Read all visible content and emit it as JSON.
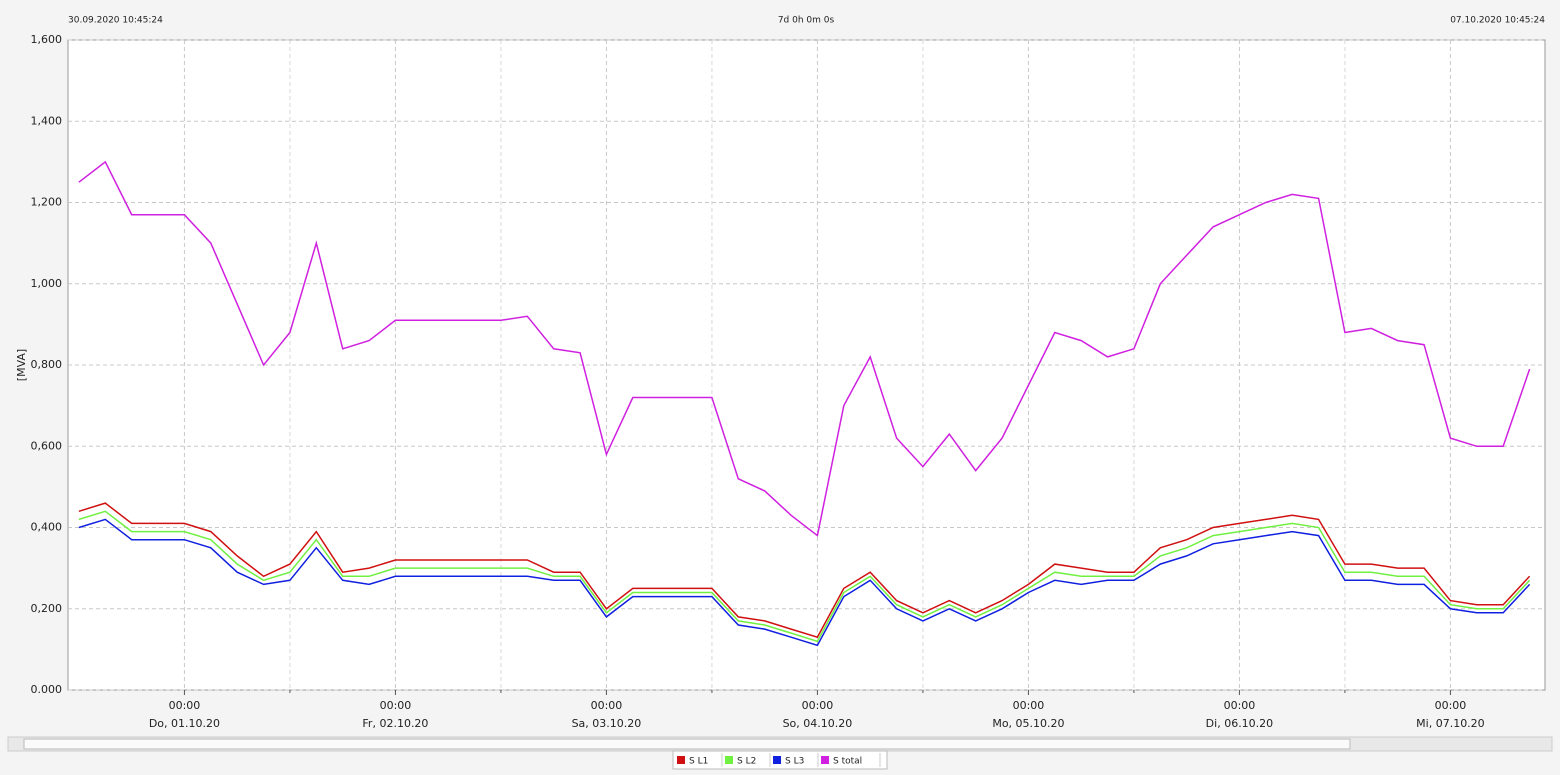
{
  "chart_data": {
    "type": "line",
    "header_left": "30.09.2020 10:45:24",
    "header_center": "7d 0h 0m 0s",
    "header_right": "07.10.2020 10:45:24",
    "y_label": "[MVA]",
    "xlim": [
      "2020-09-30T10:45:24",
      "2020-10-07T10:45:24"
    ],
    "xticks": [
      {
        "value": "2020-10-01T00:00",
        "label": "00:00",
        "day": "Do, 01.10.20"
      },
      {
        "value": "2020-10-02T00:00",
        "label": "00:00",
        "day": "Fr, 02.10.20"
      },
      {
        "value": "2020-10-03T00:00",
        "label": "00:00",
        "day": "Sa, 03.10.20"
      },
      {
        "value": "2020-10-04T00:00",
        "label": "00:00",
        "day": "So, 04.10.20"
      },
      {
        "value": "2020-10-05T00:00",
        "label": "00:00",
        "day": "Mo, 05.10.20"
      },
      {
        "value": "2020-10-06T00:00",
        "label": "00:00",
        "day": "Di, 06.10.20"
      },
      {
        "value": "2020-10-07T00:00",
        "label": "00:00",
        "day": "Mi, 07.10.20"
      }
    ],
    "xminorticks": [
      "2020-10-01T12:00",
      "2020-10-02T12:00",
      "2020-10-03T12:00",
      "2020-10-04T12:00",
      "2020-10-05T12:00",
      "2020-10-06T12:00"
    ],
    "ylim": [
      0,
      1.6
    ],
    "yticks": [
      {
        "value": 0,
        "label": "0.000"
      },
      {
        "value": 0.2,
        "label": "0,200"
      },
      {
        "value": 0.4,
        "label": "0,400"
      },
      {
        "value": 0.6,
        "label": "0,600"
      },
      {
        "value": 0.8,
        "label": "0,800"
      },
      {
        "value": 1.0,
        "label": "1,000"
      },
      {
        "value": 1.2,
        "label": "1,200"
      },
      {
        "value": 1.4,
        "label": "1,400"
      },
      {
        "value": 1.6,
        "label": "1,600"
      }
    ],
    "grid": true,
    "x": [
      "2020-09-30T12:00",
      "2020-09-30T15:00",
      "2020-09-30T18:00",
      "2020-09-30T21:00",
      "2020-10-01T00:00",
      "2020-10-01T03:00",
      "2020-10-01T06:00",
      "2020-10-01T09:00",
      "2020-10-01T12:00",
      "2020-10-01T15:00",
      "2020-10-01T18:00",
      "2020-10-01T21:00",
      "2020-10-02T00:00",
      "2020-10-02T03:00",
      "2020-10-02T06:00",
      "2020-10-02T09:00",
      "2020-10-02T12:00",
      "2020-10-02T15:00",
      "2020-10-02T18:00",
      "2020-10-02T21:00",
      "2020-10-03T00:00",
      "2020-10-03T03:00",
      "2020-10-03T06:00",
      "2020-10-03T09:00",
      "2020-10-03T12:00",
      "2020-10-03T15:00",
      "2020-10-03T18:00",
      "2020-10-03T21:00",
      "2020-10-04T00:00",
      "2020-10-04T03:00",
      "2020-10-04T06:00",
      "2020-10-04T09:00",
      "2020-10-04T12:00",
      "2020-10-04T15:00",
      "2020-10-04T18:00",
      "2020-10-04T21:00",
      "2020-10-05T00:00",
      "2020-10-05T03:00",
      "2020-10-05T06:00",
      "2020-10-05T09:00",
      "2020-10-05T12:00",
      "2020-10-05T15:00",
      "2020-10-05T18:00",
      "2020-10-05T21:00",
      "2020-10-06T00:00",
      "2020-10-06T03:00",
      "2020-10-06T06:00",
      "2020-10-06T09:00",
      "2020-10-06T12:00",
      "2020-10-06T15:00",
      "2020-10-06T18:00",
      "2020-10-06T21:00",
      "2020-10-07T00:00",
      "2020-10-07T03:00",
      "2020-10-07T06:00",
      "2020-10-07T09:00"
    ],
    "series": [
      {
        "name": "S L1",
        "color": "#d01010",
        "values": [
          0.44,
          0.46,
          0.41,
          0.41,
          0.41,
          0.39,
          0.33,
          0.28,
          0.31,
          0.39,
          0.29,
          0.3,
          0.32,
          0.32,
          0.32,
          0.32,
          0.32,
          0.32,
          0.29,
          0.29,
          0.2,
          0.25,
          0.25,
          0.25,
          0.25,
          0.18,
          0.17,
          0.15,
          0.13,
          0.25,
          0.29,
          0.22,
          0.19,
          0.22,
          0.19,
          0.22,
          0.26,
          0.31,
          0.3,
          0.29,
          0.29,
          0.35,
          0.37,
          0.4,
          0.41,
          0.42,
          0.43,
          0.42,
          0.31,
          0.31,
          0.3,
          0.3,
          0.22,
          0.21,
          0.21,
          0.28
        ]
      },
      {
        "name": "S L2",
        "color": "#70f040",
        "values": [
          0.42,
          0.44,
          0.39,
          0.39,
          0.39,
          0.37,
          0.31,
          0.27,
          0.29,
          0.37,
          0.28,
          0.28,
          0.3,
          0.3,
          0.3,
          0.3,
          0.3,
          0.3,
          0.28,
          0.28,
          0.19,
          0.24,
          0.24,
          0.24,
          0.24,
          0.17,
          0.16,
          0.14,
          0.12,
          0.24,
          0.28,
          0.21,
          0.18,
          0.21,
          0.18,
          0.21,
          0.25,
          0.29,
          0.28,
          0.28,
          0.28,
          0.33,
          0.35,
          0.38,
          0.39,
          0.4,
          0.41,
          0.4,
          0.29,
          0.29,
          0.28,
          0.28,
          0.21,
          0.2,
          0.2,
          0.27
        ]
      },
      {
        "name": "S L3",
        "color": "#1020e0",
        "values": [
          0.4,
          0.42,
          0.37,
          0.37,
          0.37,
          0.35,
          0.29,
          0.26,
          0.27,
          0.35,
          0.27,
          0.26,
          0.28,
          0.28,
          0.28,
          0.28,
          0.28,
          0.28,
          0.27,
          0.27,
          0.18,
          0.23,
          0.23,
          0.23,
          0.23,
          0.16,
          0.15,
          0.13,
          0.11,
          0.23,
          0.27,
          0.2,
          0.17,
          0.2,
          0.17,
          0.2,
          0.24,
          0.27,
          0.26,
          0.27,
          0.27,
          0.31,
          0.33,
          0.36,
          0.37,
          0.38,
          0.39,
          0.38,
          0.27,
          0.27,
          0.26,
          0.26,
          0.2,
          0.19,
          0.19,
          0.26
        ]
      },
      {
        "name": "S total",
        "color": "#d020e0",
        "values": [
          1.25,
          1.3,
          1.17,
          1.17,
          1.17,
          1.1,
          0.95,
          0.8,
          0.88,
          1.1,
          0.84,
          0.86,
          0.91,
          0.91,
          0.91,
          0.91,
          0.91,
          0.92,
          0.84,
          0.83,
          0.58,
          0.72,
          0.72,
          0.72,
          0.72,
          0.52,
          0.49,
          0.43,
          0.38,
          0.7,
          0.82,
          0.62,
          0.55,
          0.63,
          0.54,
          0.62,
          0.75,
          0.88,
          0.86,
          0.82,
          0.84,
          1.0,
          1.07,
          1.14,
          1.17,
          1.2,
          1.22,
          1.21,
          0.88,
          0.89,
          0.86,
          0.85,
          0.62,
          0.6,
          0.6,
          0.79
        ]
      }
    ]
  }
}
